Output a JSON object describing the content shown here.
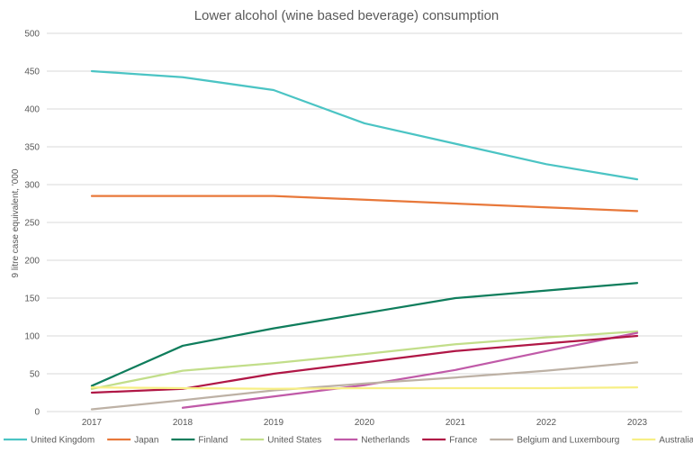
{
  "chart_data": {
    "type": "line",
    "title": "Lower alcohol (wine based beverage) consumption",
    "xlabel": "",
    "ylabel": "9 litre case equivalent, '000",
    "x": [
      "2017",
      "2018",
      "2019",
      "2020",
      "2021",
      "2022",
      "2023"
    ],
    "ylim": [
      0,
      500
    ],
    "yticks": [
      "0",
      "50",
      "100",
      "150",
      "200",
      "250",
      "300",
      "350",
      "400",
      "450",
      "500"
    ],
    "grid": true,
    "legend_position": "bottom",
    "series": [
      {
        "name": "United Kingdom",
        "color": "#4bc4c4",
        "values": [
          450,
          442,
          425,
          381,
          354,
          327,
          307
        ]
      },
      {
        "name": "Japan",
        "color": "#e8783a",
        "values": [
          285,
          285,
          285,
          280,
          275,
          270,
          265
        ]
      },
      {
        "name": "Finland",
        "color": "#0f7d5c",
        "values": [
          34,
          87,
          110,
          130,
          150,
          160,
          170
        ]
      },
      {
        "name": "United States",
        "color": "#c2de8a",
        "values": [
          30,
          54,
          64,
          76,
          89,
          98,
          106
        ]
      },
      {
        "name": "Netherlands",
        "color": "#c05aa8",
        "values": [
          null,
          5,
          20,
          35,
          55,
          80,
          104
        ]
      },
      {
        "name": "France",
        "color": "#b01746",
        "values": [
          25,
          30,
          50,
          65,
          80,
          90,
          100
        ]
      },
      {
        "name": "Belgium and Luxembourg",
        "color": "#bdb1a5",
        "values": [
          3,
          15,
          28,
          37,
          45,
          54,
          65
        ]
      },
      {
        "name": "Australia",
        "color": "#f7ef85",
        "values": [
          32,
          31,
          30,
          31,
          31,
          31,
          32
        ]
      }
    ]
  }
}
